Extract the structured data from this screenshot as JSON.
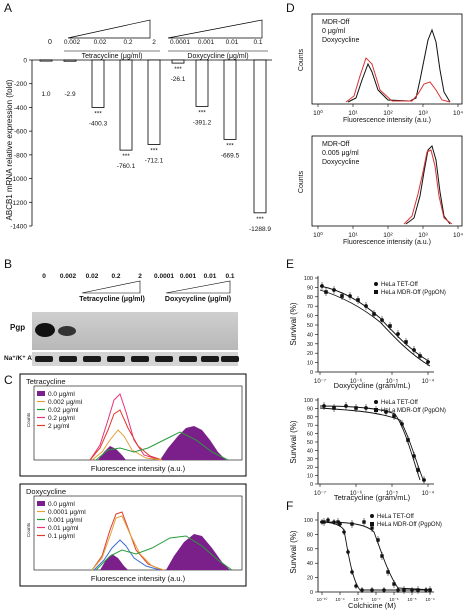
{
  "panel_labels": {
    "a": "A",
    "b": "B",
    "c": "C",
    "d": "D",
    "e": "E",
    "f": "F"
  },
  "panel_a": {
    "ylabel": "ABCB1 mRNA relative expression (fold)",
    "yticks": [
      "0",
      "-200",
      "-400",
      "-600",
      "-800",
      "-1000",
      "-1200",
      "-1400"
    ],
    "tetracycline_label": "Tetracycline (μg/ml)",
    "doxycycline_label": "Doxycycline (μg/ml)",
    "zero_dose": "0",
    "tet_doses": [
      "0.002",
      "0.02",
      "0.2",
      "2"
    ],
    "dox_doses": [
      "0.0001",
      "0.001",
      "0.01",
      "0.1"
    ],
    "stars": "***"
  },
  "chart_data": [
    {
      "type": "bar",
      "panel": "A",
      "categories": [
        "0",
        "Tet 0.002",
        "Tet 0.02",
        "Tet 0.2",
        "Tet 2",
        "Dox 0.0001",
        "Dox 0.001",
        "Dox 0.01",
        "Dox 0.1"
      ],
      "values": [
        1.0,
        -2.9,
        -400.3,
        -760.1,
        -712.1,
        -26.1,
        -391.2,
        -669.5,
        -1288.9
      ],
      "value_labels": [
        "1.0",
        "-2.9",
        "-400.3",
        "-760.1",
        "-712.1",
        "-26.1",
        "-391.2",
        "-669.5",
        "-1288.9"
      ],
      "significance": [
        "",
        "",
        "***",
        "***",
        "***",
        "***",
        "***",
        "***",
        "***"
      ],
      "ylabel": "ABCB1 mRNA relative expression (fold)",
      "ylim": [
        -1400,
        0
      ]
    }
  ],
  "panel_b": {
    "doses": [
      "0",
      "0.002",
      "0.02",
      "0.2",
      "2",
      "0.0001",
      "0.001",
      "0.01",
      "0.1"
    ],
    "tetracycline_label": "Tetracycline (μg/ml)",
    "doxycycline_label": "Doxycycline (μg/ml)",
    "row_pgp": "Pgp",
    "row_atpase": "Na⁺/K⁺ ATPase"
  },
  "panel_c": {
    "top_title": "Tetracycline",
    "top_legend": [
      "0.0 μg/ml",
      "0.002 μg/ml",
      "0.02 μg/ml",
      "0.2 μg/ml",
      "2 μg/ml"
    ],
    "bottom_title": "Doxycycline",
    "bottom_legend": [
      "0.0 μg/ml",
      "0.0001 μg/ml",
      "0.001 μg/ml",
      "0.01 μg/ml",
      "0.1 μg/ml"
    ],
    "xlabel": "Fluorescence intensity (a.u.)",
    "ylabel": "Counts",
    "legend_colors": [
      "#7b1f8a",
      "#e2a13a",
      "#2a9d3a",
      "#e6337a",
      "#e03a2a"
    ]
  },
  "panel_d": {
    "top_text": [
      "MDR-Off",
      "0 μg/ml",
      "Doxycycline"
    ],
    "bottom_text": [
      "MDR-Off",
      "0.005 μg/ml",
      "Doxycycline"
    ],
    "xlabel": "Fluorescence intensity (a.u.)",
    "ylabel": "Counts",
    "xticks": [
      "10⁰",
      "10¹",
      "10²",
      "10³",
      "10⁴"
    ]
  },
  "panel_e": {
    "top_xlabel": "Doxycycline (gram/mL)",
    "bottom_xlabel": "Tetracycline (gram/mL)",
    "ylabel": "Survival (%)",
    "yticks": [
      "0",
      "10",
      "20",
      "30",
      "40",
      "50",
      "60",
      "70",
      "80",
      "90",
      "100"
    ],
    "top_legend": [
      "HeLa TET-Off",
      "HeLa MDR-Off (PgpON)"
    ],
    "bottom_legend": [
      "HeLa TET-Off",
      "HeLa MDR-Off (PgpON)"
    ],
    "top_xticks": [
      "10⁻⁷",
      "10⁻⁶",
      "10⁻⁵",
      "10⁻⁴"
    ],
    "bottom_xticks": [
      "10⁻⁷",
      "10⁻⁶",
      "10⁻⁵",
      "10⁻⁴"
    ]
  },
  "panel_f": {
    "xlabel": "Colchicine (M)",
    "ylabel": "Survival (%)",
    "yticks": [
      "0",
      "20",
      "40",
      "60",
      "80",
      "100"
    ],
    "legend": [
      "HeLa TET-Off",
      "HeLa MDR-Off (PgpON)"
    ],
    "xticks": [
      "10⁻¹⁰",
      "10⁻⁹",
      "10⁻⁸",
      "10⁻⁷",
      "10⁻⁶",
      "10⁻⁵",
      "10⁻⁴"
    ]
  }
}
